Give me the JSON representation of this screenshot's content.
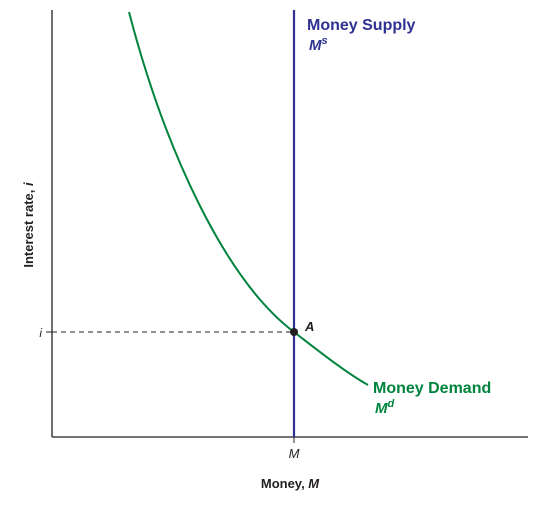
{
  "axes": {
    "y_label": "Interest rate, ",
    "y_label_var": "i",
    "x_label": "Money, ",
    "x_label_var": "M"
  },
  "ticks": {
    "i": "i",
    "M": "M"
  },
  "supply": {
    "label": "Money Supply",
    "symbol_base": "M",
    "symbol_sup": "s",
    "color": "#2e3192"
  },
  "demand": {
    "label": "Money Demand",
    "symbol_base": "M",
    "symbol_sup": "d",
    "color": "#00843d"
  },
  "equilibrium": {
    "label": "A"
  },
  "colors": {
    "axis": "#231f20",
    "guide": "#231f20"
  }
}
